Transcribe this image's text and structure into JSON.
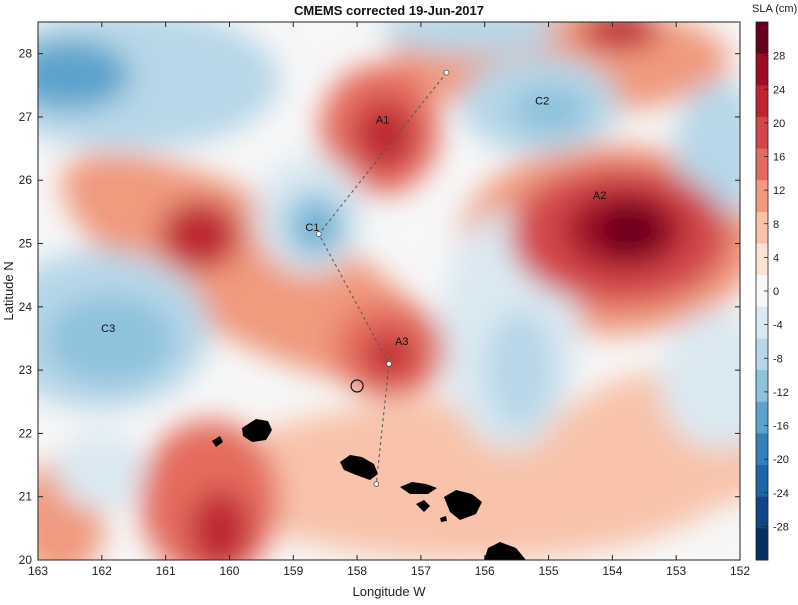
{
  "title": "CMEMS corrected 19-Jun-2017",
  "xlabel": "Longitude W",
  "ylabel": "Latitude N",
  "colorbar_label": "SLA (cm)",
  "x_ticks": [
    "163",
    "162",
    "161",
    "160",
    "159",
    "158",
    "157",
    "156",
    "155",
    "154",
    "153",
    "152"
  ],
  "y_ticks": [
    "20",
    "21",
    "22",
    "23",
    "24",
    "25",
    "26",
    "27",
    "28"
  ],
  "colorbar_ticks": [
    "28",
    "24",
    "20",
    "16",
    "12",
    "8",
    "4",
    "0",
    "-4",
    "-8",
    "-12",
    "-16",
    "-20",
    "-24",
    "-28"
  ],
  "colormap": [
    "#67001f",
    "#9d0c27",
    "#bd2531",
    "#d3474a",
    "#e46c5d",
    "#f09a7e",
    "#f8c3aa",
    "#fbe3d5",
    "#f7f7f7",
    "#dbe9f2",
    "#b7d7e8",
    "#8ec2dd",
    "#5ca3cc",
    "#3381bb",
    "#1d65a6",
    "#0f4686",
    "#053061"
  ],
  "eddies": [
    {
      "label": "A1",
      "lon": 157.6,
      "lat": 26.9
    },
    {
      "label": "A2",
      "lon": 154.2,
      "lat": 25.7
    },
    {
      "label": "A3",
      "lon": 157.3,
      "lat": 23.4
    },
    {
      "label": "C1",
      "lon": 158.7,
      "lat": 25.2
    },
    {
      "label": "C2",
      "lon": 155.1,
      "lat": 27.2
    },
    {
      "label": "C3",
      "lon": 161.9,
      "lat": 23.6
    }
  ],
  "track": [
    {
      "lon": 156.6,
      "lat": 27.7
    },
    {
      "lon": 158.6,
      "lat": 25.15
    },
    {
      "lon": 157.5,
      "lat": 23.1
    },
    {
      "lon": 157.7,
      "lat": 21.2
    }
  ],
  "station_circle": {
    "lon": 158.0,
    "lat": 22.75
  }
}
